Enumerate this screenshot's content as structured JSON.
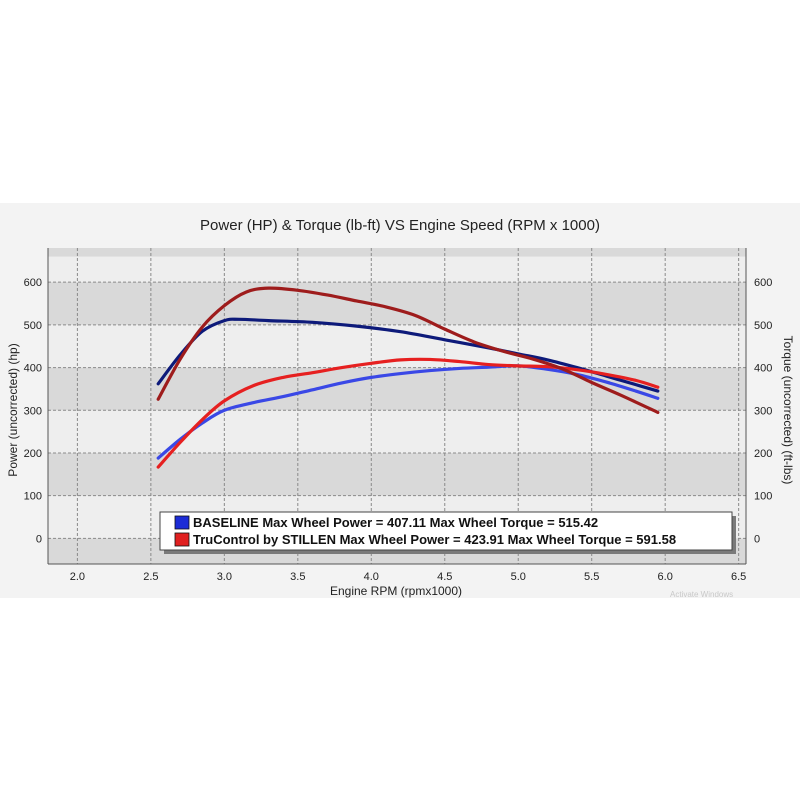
{
  "chart_data": {
    "type": "line",
    "title": "Power (HP) & Torque (lb-ft) VS Engine Speed (RPM x 1000)",
    "xlabel": "Engine RPM (rpmx1000)",
    "ylabel_left": "Power (uncorrected) (hp)",
    "ylabel_right": "Torque (uncorrected) (ft-lbs)",
    "xlim": [
      1.8,
      6.55
    ],
    "ylim_left": [
      -60,
      680
    ],
    "ylim_right": [
      -60,
      680
    ],
    "x_ticks": [
      "2.0",
      "2.5",
      "3.0",
      "3.5",
      "4.0",
      "4.5",
      "5.0",
      "5.5",
      "6.0",
      "6.5"
    ],
    "y_ticks_left": [
      "0",
      "100",
      "200",
      "300",
      "400",
      "500",
      "600"
    ],
    "y_ticks_right": [
      "0",
      "100",
      "200",
      "300",
      "400",
      "500",
      "600"
    ],
    "grid": true,
    "legend_position": "bottom-center",
    "series": [
      {
        "name": "BASELINE Max Wheel Power = 407.11 Max Wheel Torque = 515.42",
        "color": "#3a48e6",
        "axis": "left",
        "x": [
          2.55,
          2.7,
          2.85,
          3.0,
          3.2,
          3.4,
          3.6,
          3.8,
          4.0,
          4.2,
          4.4,
          4.6,
          4.8,
          5.0,
          5.2,
          5.4,
          5.6,
          5.8,
          5.95
        ],
        "values": [
          188,
          232,
          270,
          300,
          318,
          332,
          348,
          364,
          377,
          386,
          393,
          398,
          401,
          404,
          396,
          384,
          366,
          345,
          328
        ]
      },
      {
        "name": "",
        "color": "#0d1a7a",
        "axis": "right",
        "x": [
          2.55,
          2.7,
          2.85,
          3.0,
          3.1,
          3.3,
          3.6,
          3.9,
          4.2,
          4.5,
          4.8,
          5.0,
          5.2,
          5.4,
          5.6,
          5.8,
          5.95
        ],
        "values": [
          362,
          430,
          485,
          510,
          513,
          510,
          506,
          497,
          484,
          465,
          446,
          432,
          418,
          400,
          380,
          360,
          345
        ]
      },
      {
        "name": "TruControl by STILLEN Max Wheel Power = 423.91 Max Wheel Torque = 591.58",
        "color": "#e62020",
        "axis": "left",
        "x": [
          2.55,
          2.7,
          2.85,
          3.0,
          3.2,
          3.4,
          3.6,
          3.8,
          4.0,
          4.2,
          4.4,
          4.6,
          4.8,
          5.0,
          5.2,
          5.4,
          5.6,
          5.8,
          5.95
        ],
        "values": [
          167,
          225,
          278,
          322,
          358,
          377,
          388,
          400,
          410,
          418,
          419,
          414,
          407,
          404,
          402,
          395,
          384,
          370,
          354
        ]
      },
      {
        "name": "",
        "color": "#9e1c1c",
        "axis": "right",
        "x": [
          2.55,
          2.7,
          2.85,
          3.0,
          3.15,
          3.3,
          3.5,
          3.7,
          3.9,
          4.1,
          4.3,
          4.5,
          4.7,
          4.9,
          5.1,
          5.3,
          5.5,
          5.7,
          5.95
        ],
        "values": [
          326,
          420,
          495,
          545,
          577,
          586,
          581,
          570,
          556,
          542,
          522,
          490,
          460,
          438,
          420,
          397,
          365,
          335,
          295
        ]
      }
    ],
    "legend": [
      {
        "label": "BASELINE Max Wheel Power = 407.11 Max Wheel Torque = 515.42",
        "swatch_color": "#1c2cd6"
      },
      {
        "label": "TruControl by STILLEN Max Wheel Power = 423.91 Max Wheel Torque = 591.58",
        "swatch_color": "#e02020"
      }
    ]
  },
  "watermark": "Activate Windows"
}
